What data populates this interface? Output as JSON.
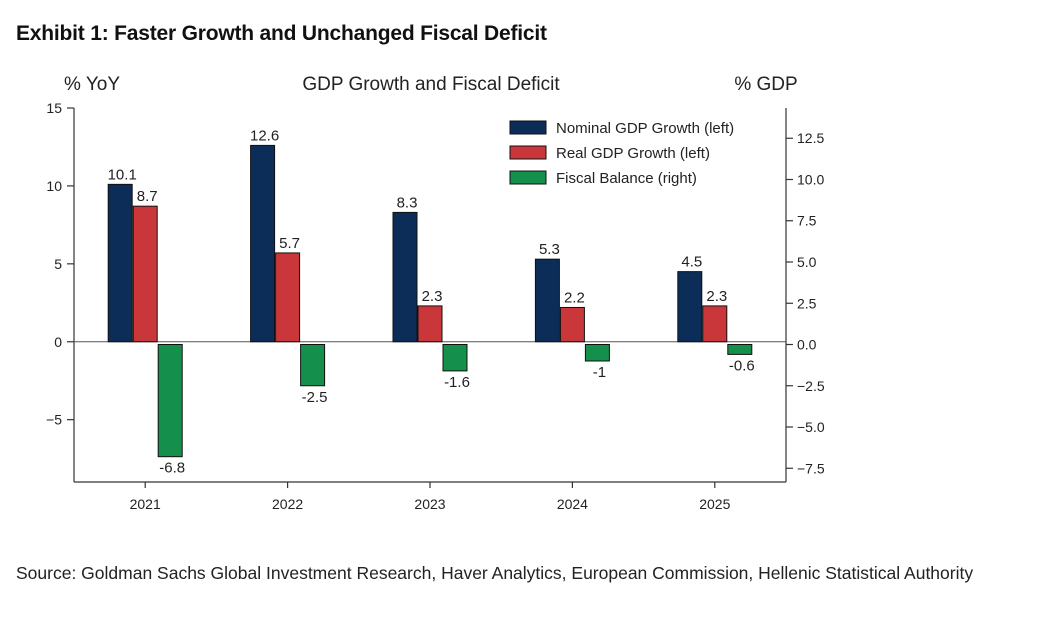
{
  "exhibit_title": "Exhibit 1: Faster Growth and Unchanged Fiscal Deficit",
  "source": "Source: Goldman Sachs Global Investment Research, Haver Analytics, European Commission, Hellenic Statistical Authority",
  "chart_data": {
    "type": "bar",
    "title": "GDP Growth and Fiscal Deficit",
    "ylabel_left": "% YoY",
    "ylabel_right": "% GDP",
    "categories": [
      "2021",
      "2022",
      "2023",
      "2024",
      "2025"
    ],
    "series": [
      {
        "name": "Nominal GDP Growth (left)",
        "axis": "left",
        "color": "#0c2d57",
        "values": [
          10.1,
          12.6,
          8.3,
          5.3,
          4.5
        ],
        "labels": [
          "10.1",
          "12.6",
          "8.3",
          "5.3",
          "4.5"
        ]
      },
      {
        "name": "Real GDP Growth (left)",
        "axis": "left",
        "color": "#c9373a",
        "values": [
          8.7,
          5.7,
          2.3,
          2.2,
          2.3
        ],
        "labels": [
          "8.7",
          "5.7",
          "2.3",
          "2.2",
          "2.3"
        ]
      },
      {
        "name": "Fiscal Balance (right)",
        "axis": "right",
        "color": "#14904c",
        "values": [
          -6.8,
          -2.5,
          -1.6,
          -1.0,
          -0.6
        ],
        "labels": [
          "-6.8",
          "-2.5",
          "-1.6",
          "-1",
          "-0.6"
        ]
      }
    ],
    "ylim_left": [
      -9,
      15
    ],
    "ylim_right": [
      -8.333,
      14.333
    ],
    "left_ticks": [
      {
        "v": 15,
        "label": "15"
      },
      {
        "v": 10,
        "label": "10"
      },
      {
        "v": 5,
        "label": "5"
      },
      {
        "v": 0,
        "label": "0"
      },
      {
        "v": -5,
        "label": "−5"
      }
    ],
    "right_ticks": [
      {
        "v": 12.5,
        "label": "12.5"
      },
      {
        "v": 10,
        "label": "10.0"
      },
      {
        "v": 7.5,
        "label": "7.5"
      },
      {
        "v": 5,
        "label": "5.0"
      },
      {
        "v": 2.5,
        "label": "2.5"
      },
      {
        "v": 0,
        "label": "0.0"
      },
      {
        "v": -2.5,
        "label": "−2.5"
      },
      {
        "v": -5,
        "label": "−5.0"
      },
      {
        "v": -7.5,
        "label": "−7.5"
      }
    ],
    "legend_position": "top-right",
    "grid": false
  }
}
